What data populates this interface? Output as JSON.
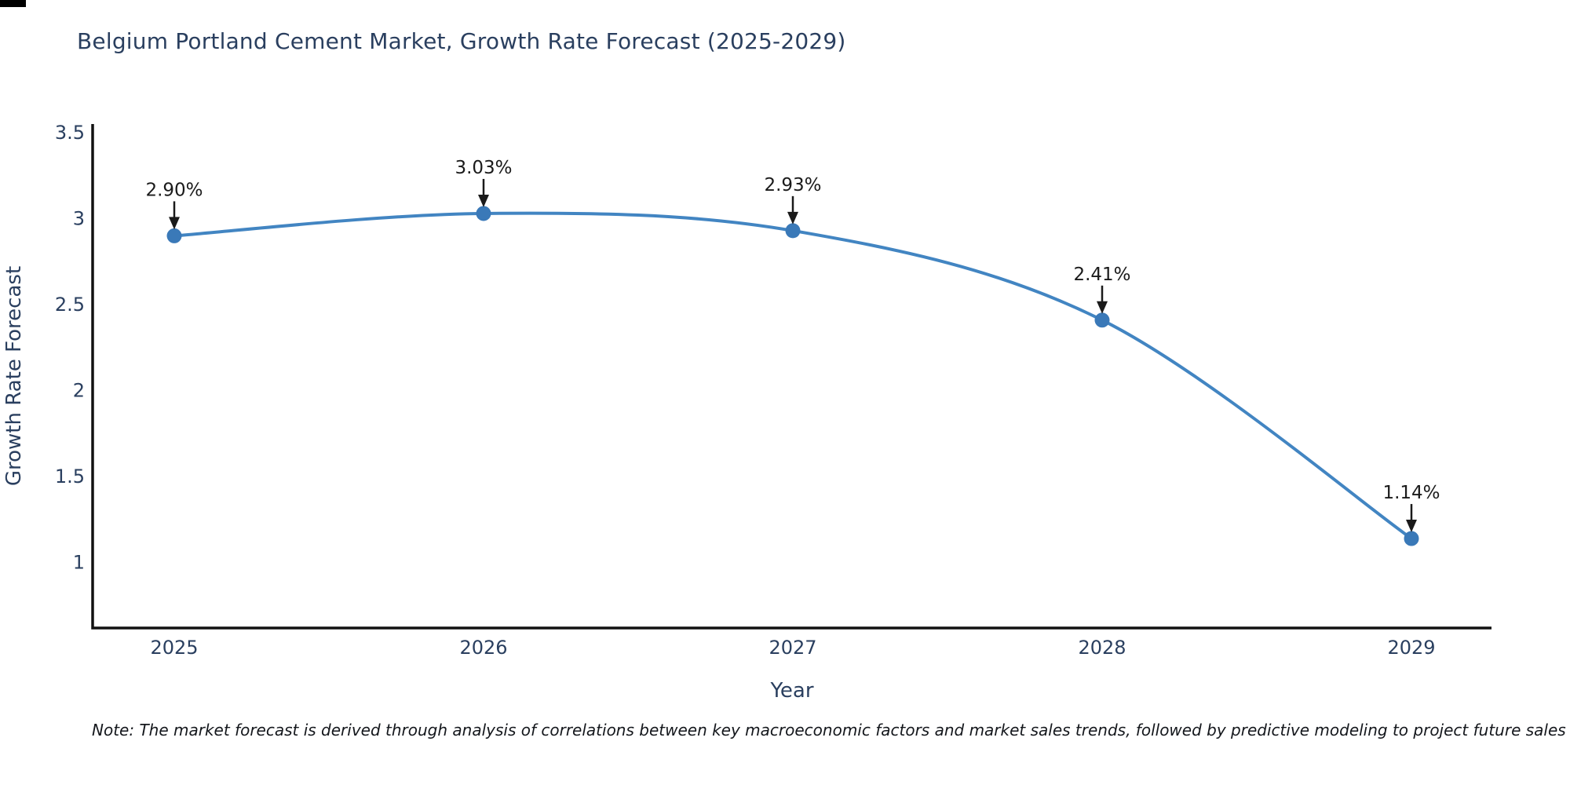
{
  "chart": {
    "title": "Belgium Portland Cement Market, Growth Rate Forecast (2025-2029)",
    "note": "Note: The market forecast is derived through analysis of correlations between key macroeconomic factors and market sales trends, followed by predictive modeling to project future sales",
    "colors": {
      "title_text": "#2a3f5f",
      "axis_text": "#2a3f5f",
      "axis_line": "#111111",
      "series_line": "#4285c2",
      "marker": "#3a79b8",
      "annotation_arrow": "#1a1a1a",
      "annotation_text": "#1a1a1a",
      "background": "#ffffff"
    }
  },
  "chart_data": {
    "type": "line",
    "title": "Belgium Portland Cement Market, Growth Rate Forecast (2025-2029)",
    "xlabel": "Year",
    "ylabel": "Growth Rate Forecast",
    "x": [
      "2025",
      "2026",
      "2027",
      "2028",
      "2029"
    ],
    "series": [
      {
        "name": "Growth Rate Forecast",
        "values": [
          2.9,
          3.03,
          2.93,
          2.41,
          1.14
        ],
        "point_labels": [
          "2.90%",
          "3.03%",
          "2.93%",
          "2.41%",
          "1.14%"
        ]
      }
    ],
    "yticks": [
      1,
      1.5,
      2,
      2.5,
      3,
      3.5
    ],
    "ylim": [
      0.62,
      3.55
    ],
    "grid": false,
    "legend": false,
    "line_shape": "spline",
    "markers": true,
    "annotations_have_arrows": true
  }
}
